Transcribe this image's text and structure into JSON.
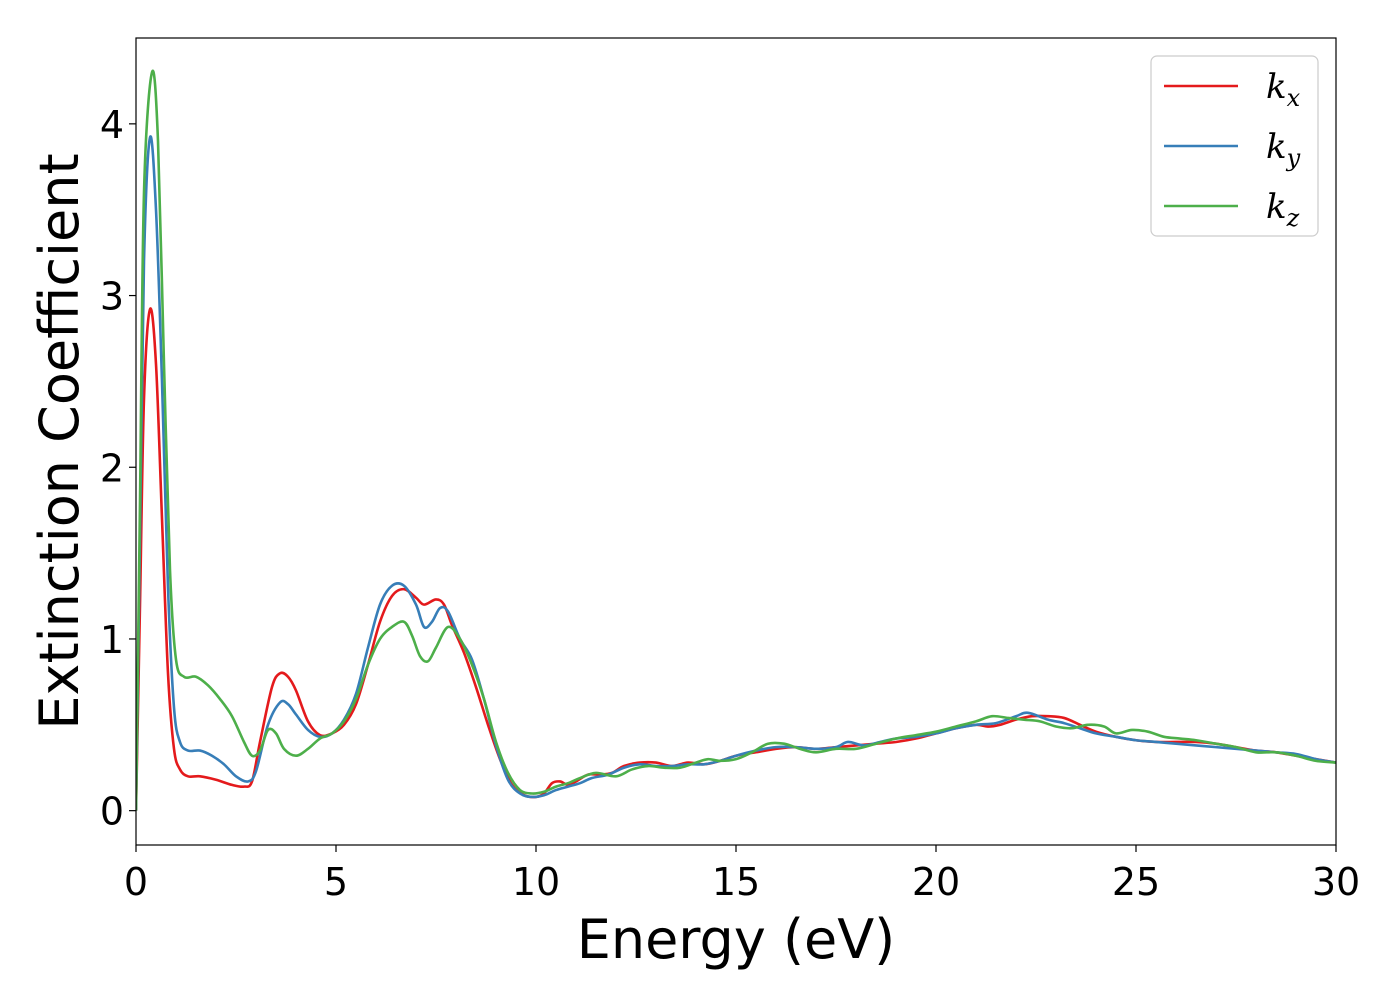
{
  "chart_data": {
    "type": "line",
    "xlabel": "Energy (eV)",
    "ylabel": "Extinction Coefficient",
    "xlim": [
      0,
      30
    ],
    "ylim": [
      -0.2,
      4.5
    ],
    "xticks": [
      0,
      5,
      10,
      15,
      20,
      25,
      30
    ],
    "yticks": [
      0,
      1,
      2,
      3,
      4
    ],
    "grid": false,
    "legend_position": "top-right",
    "series": [
      {
        "name": "k",
        "subscript": "x",
        "color": "#e41a1c",
        "points": [
          [
            0,
            0
          ],
          [
            0.1,
            1.2
          ],
          [
            0.2,
            2.4
          ],
          [
            0.35,
            2.92
          ],
          [
            0.5,
            2.6
          ],
          [
            0.65,
            1.7
          ],
          [
            0.8,
            0.8
          ],
          [
            0.95,
            0.36
          ],
          [
            1.1,
            0.24
          ],
          [
            1.3,
            0.2
          ],
          [
            1.6,
            0.2
          ],
          [
            2.0,
            0.18
          ],
          [
            2.4,
            0.15
          ],
          [
            2.7,
            0.14
          ],
          [
            2.9,
            0.17
          ],
          [
            3.1,
            0.4
          ],
          [
            3.4,
            0.72
          ],
          [
            3.6,
            0.8
          ],
          [
            3.8,
            0.78
          ],
          [
            4.0,
            0.7
          ],
          [
            4.3,
            0.52
          ],
          [
            4.6,
            0.44
          ],
          [
            4.9,
            0.45
          ],
          [
            5.2,
            0.5
          ],
          [
            5.5,
            0.62
          ],
          [
            5.8,
            0.85
          ],
          [
            6.1,
            1.1
          ],
          [
            6.4,
            1.25
          ],
          [
            6.7,
            1.29
          ],
          [
            7.0,
            1.24
          ],
          [
            7.2,
            1.2
          ],
          [
            7.5,
            1.23
          ],
          [
            7.7,
            1.2
          ],
          [
            7.9,
            1.08
          ],
          [
            8.2,
            0.92
          ],
          [
            8.5,
            0.72
          ],
          [
            8.8,
            0.5
          ],
          [
            9.1,
            0.3
          ],
          [
            9.4,
            0.15
          ],
          [
            9.7,
            0.09
          ],
          [
            10.0,
            0.08
          ],
          [
            10.2,
            0.1
          ],
          [
            10.4,
            0.16
          ],
          [
            10.6,
            0.17
          ],
          [
            10.8,
            0.15
          ],
          [
            11.0,
            0.17
          ],
          [
            11.3,
            0.21
          ],
          [
            11.6,
            0.21
          ],
          [
            11.9,
            0.22
          ],
          [
            12.2,
            0.26
          ],
          [
            12.6,
            0.28
          ],
          [
            13.0,
            0.28
          ],
          [
            13.4,
            0.26
          ],
          [
            13.8,
            0.28
          ],
          [
            14.2,
            0.27
          ],
          [
            14.6,
            0.29
          ],
          [
            15.0,
            0.32
          ],
          [
            15.5,
            0.34
          ],
          [
            16.0,
            0.36
          ],
          [
            16.5,
            0.37
          ],
          [
            17.0,
            0.36
          ],
          [
            17.5,
            0.37
          ],
          [
            18.0,
            0.38
          ],
          [
            18.5,
            0.39
          ],
          [
            19.0,
            0.4
          ],
          [
            19.5,
            0.42
          ],
          [
            20.0,
            0.45
          ],
          [
            20.5,
            0.48
          ],
          [
            21.0,
            0.5
          ],
          [
            21.3,
            0.49
          ],
          [
            21.6,
            0.5
          ],
          [
            22.0,
            0.53
          ],
          [
            22.4,
            0.55
          ],
          [
            22.8,
            0.55
          ],
          [
            23.2,
            0.54
          ],
          [
            23.6,
            0.5
          ],
          [
            24.0,
            0.46
          ],
          [
            24.5,
            0.43
          ],
          [
            25.0,
            0.41
          ],
          [
            25.5,
            0.4
          ],
          [
            26.0,
            0.4
          ],
          [
            26.5,
            0.4
          ],
          [
            27.0,
            0.39
          ],
          [
            27.5,
            0.37
          ],
          [
            28.0,
            0.35
          ],
          [
            28.5,
            0.34
          ],
          [
            29.0,
            0.32
          ],
          [
            29.5,
            0.3
          ],
          [
            30.0,
            0.28
          ]
        ]
      },
      {
        "name": "k",
        "subscript": "y",
        "color": "#377eb8",
        "points": [
          [
            0,
            0
          ],
          [
            0.1,
            1.6
          ],
          [
            0.2,
            3.2
          ],
          [
            0.35,
            3.92
          ],
          [
            0.5,
            3.5
          ],
          [
            0.65,
            2.5
          ],
          [
            0.8,
            1.3
          ],
          [
            0.95,
            0.6
          ],
          [
            1.1,
            0.4
          ],
          [
            1.3,
            0.35
          ],
          [
            1.6,
            0.35
          ],
          [
            1.9,
            0.32
          ],
          [
            2.2,
            0.27
          ],
          [
            2.5,
            0.2
          ],
          [
            2.8,
            0.17
          ],
          [
            3.0,
            0.23
          ],
          [
            3.3,
            0.5
          ],
          [
            3.6,
            0.63
          ],
          [
            3.8,
            0.62
          ],
          [
            4.0,
            0.56
          ],
          [
            4.3,
            0.47
          ],
          [
            4.6,
            0.43
          ],
          [
            4.9,
            0.45
          ],
          [
            5.2,
            0.53
          ],
          [
            5.5,
            0.68
          ],
          [
            5.8,
            0.95
          ],
          [
            6.1,
            1.2
          ],
          [
            6.4,
            1.31
          ],
          [
            6.7,
            1.31
          ],
          [
            7.0,
            1.2
          ],
          [
            7.2,
            1.07
          ],
          [
            7.4,
            1.1
          ],
          [
            7.6,
            1.18
          ],
          [
            7.8,
            1.16
          ],
          [
            8.1,
            1.0
          ],
          [
            8.4,
            0.88
          ],
          [
            8.7,
            0.65
          ],
          [
            9.0,
            0.38
          ],
          [
            9.3,
            0.18
          ],
          [
            9.6,
            0.1
          ],
          [
            9.9,
            0.08
          ],
          [
            10.2,
            0.09
          ],
          [
            10.5,
            0.12
          ],
          [
            10.8,
            0.14
          ],
          [
            11.1,
            0.16
          ],
          [
            11.4,
            0.19
          ],
          [
            11.8,
            0.21
          ],
          [
            12.2,
            0.25
          ],
          [
            12.6,
            0.27
          ],
          [
            13.0,
            0.26
          ],
          [
            13.4,
            0.26
          ],
          [
            13.8,
            0.27
          ],
          [
            14.2,
            0.27
          ],
          [
            14.6,
            0.29
          ],
          [
            15.0,
            0.32
          ],
          [
            15.5,
            0.35
          ],
          [
            16.0,
            0.37
          ],
          [
            16.5,
            0.37
          ],
          [
            17.0,
            0.36
          ],
          [
            17.5,
            0.37
          ],
          [
            17.8,
            0.4
          ],
          [
            18.2,
            0.38
          ],
          [
            18.6,
            0.4
          ],
          [
            19.0,
            0.42
          ],
          [
            19.5,
            0.43
          ],
          [
            20.0,
            0.45
          ],
          [
            20.5,
            0.48
          ],
          [
            21.0,
            0.5
          ],
          [
            21.5,
            0.51
          ],
          [
            22.0,
            0.55
          ],
          [
            22.3,
            0.57
          ],
          [
            22.8,
            0.53
          ],
          [
            23.2,
            0.51
          ],
          [
            23.6,
            0.48
          ],
          [
            24.0,
            0.45
          ],
          [
            24.5,
            0.43
          ],
          [
            25.0,
            0.41
          ],
          [
            25.5,
            0.4
          ],
          [
            26.0,
            0.39
          ],
          [
            26.5,
            0.38
          ],
          [
            27.0,
            0.37
          ],
          [
            27.5,
            0.36
          ],
          [
            28.0,
            0.35
          ],
          [
            28.5,
            0.34
          ],
          [
            29.0,
            0.33
          ],
          [
            29.5,
            0.3
          ],
          [
            30.0,
            0.28
          ]
        ]
      },
      {
        "name": "k",
        "subscript": "z",
        "color": "#4daf4a",
        "points": [
          [
            0,
            0
          ],
          [
            0.1,
            1.8
          ],
          [
            0.2,
            3.6
          ],
          [
            0.4,
            4.3
          ],
          [
            0.55,
            3.9
          ],
          [
            0.7,
            2.6
          ],
          [
            0.85,
            1.4
          ],
          [
            1.0,
            0.88
          ],
          [
            1.2,
            0.78
          ],
          [
            1.5,
            0.78
          ],
          [
            1.8,
            0.73
          ],
          [
            2.1,
            0.65
          ],
          [
            2.4,
            0.55
          ],
          [
            2.7,
            0.4
          ],
          [
            2.9,
            0.32
          ],
          [
            3.1,
            0.35
          ],
          [
            3.3,
            0.47
          ],
          [
            3.5,
            0.45
          ],
          [
            3.7,
            0.36
          ],
          [
            4.0,
            0.32
          ],
          [
            4.3,
            0.36
          ],
          [
            4.6,
            0.42
          ],
          [
            4.9,
            0.45
          ],
          [
            5.2,
            0.52
          ],
          [
            5.5,
            0.65
          ],
          [
            5.8,
            0.85
          ],
          [
            6.1,
            1.0
          ],
          [
            6.4,
            1.07
          ],
          [
            6.7,
            1.1
          ],
          [
            6.9,
            1.02
          ],
          [
            7.1,
            0.9
          ],
          [
            7.3,
            0.87
          ],
          [
            7.5,
            0.95
          ],
          [
            7.8,
            1.07
          ],
          [
            8.1,
            1.0
          ],
          [
            8.4,
            0.85
          ],
          [
            8.7,
            0.65
          ],
          [
            9.0,
            0.4
          ],
          [
            9.3,
            0.22
          ],
          [
            9.6,
            0.12
          ],
          [
            9.9,
            0.1
          ],
          [
            10.2,
            0.11
          ],
          [
            10.5,
            0.14
          ],
          [
            10.8,
            0.16
          ],
          [
            11.1,
            0.19
          ],
          [
            11.5,
            0.22
          ],
          [
            12.0,
            0.2
          ],
          [
            12.4,
            0.24
          ],
          [
            12.8,
            0.26
          ],
          [
            13.2,
            0.25
          ],
          [
            13.6,
            0.25
          ],
          [
            14.0,
            0.28
          ],
          [
            14.3,
            0.3
          ],
          [
            14.6,
            0.29
          ],
          [
            15.0,
            0.3
          ],
          [
            15.4,
            0.34
          ],
          [
            15.8,
            0.39
          ],
          [
            16.2,
            0.39
          ],
          [
            16.6,
            0.36
          ],
          [
            17.0,
            0.34
          ],
          [
            17.5,
            0.36
          ],
          [
            18.0,
            0.36
          ],
          [
            18.5,
            0.39
          ],
          [
            19.0,
            0.42
          ],
          [
            19.5,
            0.44
          ],
          [
            20.0,
            0.46
          ],
          [
            20.5,
            0.49
          ],
          [
            21.0,
            0.52
          ],
          [
            21.4,
            0.55
          ],
          [
            21.8,
            0.54
          ],
          [
            22.2,
            0.53
          ],
          [
            22.6,
            0.52
          ],
          [
            23.0,
            0.49
          ],
          [
            23.4,
            0.48
          ],
          [
            23.8,
            0.5
          ],
          [
            24.2,
            0.49
          ],
          [
            24.5,
            0.45
          ],
          [
            24.9,
            0.47
          ],
          [
            25.3,
            0.46
          ],
          [
            25.7,
            0.43
          ],
          [
            26.1,
            0.42
          ],
          [
            26.5,
            0.41
          ],
          [
            27.0,
            0.39
          ],
          [
            27.5,
            0.37
          ],
          [
            28.0,
            0.34
          ],
          [
            28.5,
            0.34
          ],
          [
            29.0,
            0.32
          ],
          [
            29.5,
            0.29
          ],
          [
            30.0,
            0.28
          ]
        ]
      }
    ]
  }
}
